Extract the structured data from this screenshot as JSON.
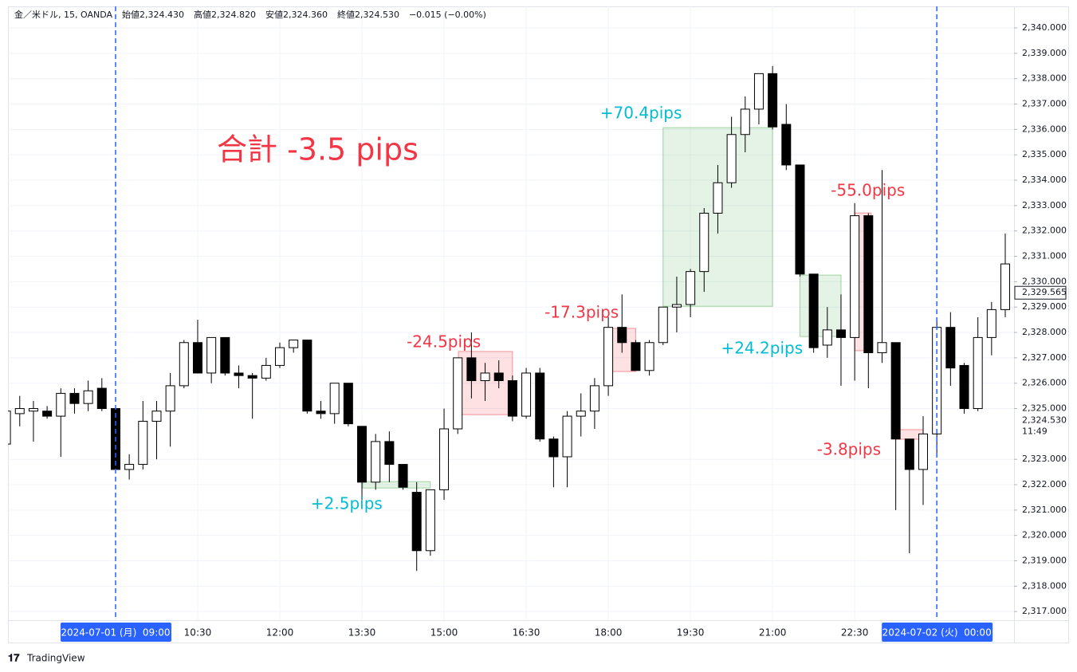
{
  "chart_data": {
    "type": "candlestick",
    "header": {
      "symbol": "金／米ドル, 15, OANDA",
      "fields": [
        {
          "name": "始値",
          "text": "2,324.430"
        },
        {
          "name": "高値",
          "text": "2,324.820"
        },
        {
          "name": "安値",
          "text": "2,324.360"
        },
        {
          "name": "終値",
          "text": "2,324.530"
        }
      ],
      "change": "−0.015 (−0.00%)"
    },
    "title": "合計 -3.5 pips",
    "brand": "TradingView",
    "categories": [
      null,
      null,
      null,
      null,
      null,
      null,
      null,
      null,
      "2024-07-01 (月)  09:00",
      null,
      null,
      null,
      null,
      null,
      "10:30",
      null,
      null,
      null,
      null,
      null,
      "12:00",
      null,
      null,
      null,
      null,
      null,
      "13:30",
      null,
      null,
      null,
      null,
      null,
      "15:00",
      null,
      null,
      null,
      null,
      null,
      "16:30",
      null,
      null,
      null,
      null,
      null,
      "18:00",
      null,
      null,
      null,
      null,
      null,
      "19:30",
      null,
      null,
      null,
      null,
      null,
      "21:00",
      null,
      null,
      null,
      null,
      null,
      "22:30",
      null,
      null,
      null,
      null,
      null,
      "2024-07-02 (火)  00:00",
      null,
      null,
      null,
      null,
      null
    ],
    "open": [
      2323.6,
      2324.8,
      2324.9,
      2324.9,
      2324.7,
      2325.6,
      2325.2,
      2325.8,
      2325.0,
      2322.6,
      2322.8,
      2324.5,
      2324.9,
      2325.9,
      2327.6,
      2326.4,
      2327.8,
      2326.4,
      2326.3,
      2326.2,
      2326.7,
      2327.4,
      2327.7,
      2324.9,
      2324.8,
      2326.0,
      2324.3,
      2322.1,
      2323.7,
      2322.8,
      2321.7,
      2319.4,
      2321.8,
      2324.2,
      2327.0,
      2326.1,
      2326.4,
      2326.1,
      2324.7,
      2326.4,
      2323.8,
      2323.1,
      2324.7,
      2324.9,
      2325.9,
      2328.2,
      2327.6,
      2326.5,
      2327.6,
      2329.0,
      2329.1,
      2330.4,
      2332.7,
      2333.9,
      2335.8,
      2336.8,
      2338.2,
      2336.2,
      2334.6,
      2330.3,
      2327.5,
      2328.1,
      2327.8,
      2332.6,
      2327.2,
      2327.6,
      2323.8,
      2322.6,
      2324.0,
      2328.2,
      2326.7,
      2325.0,
      2327.8,
      2328.9
    ],
    "high": [
      2325.0,
      2325.5,
      2325.3,
      2325.1,
      2325.8,
      2325.8,
      2326.1,
      2326.2,
      2325.0,
      2323.2,
      2325.3,
      2325.3,
      2326.4,
      2327.7,
      2328.5,
      2327.8,
      2327.8,
      2326.7,
      2326.4,
      2327.0,
      2327.6,
      2327.7,
      2327.7,
      2325.3,
      2326.0,
      2326.0,
      2324.3,
      2324.0,
      2324.1,
      2322.8,
      2322.1,
      2321.8,
      2325.0,
      2327.0,
      2328.0,
      2326.8,
      2326.9,
      2326.3,
      2326.6,
      2326.6,
      2323.9,
      2324.9,
      2325.6,
      2326.2,
      2328.6,
      2329.5,
      2327.7,
      2327.7,
      2329.0,
      2330.2,
      2330.5,
      2332.9,
      2334.6,
      2336.5,
      2337.3,
      2338.2,
      2338.5,
      2337.0,
      2334.6,
      2330.3,
      2329.0,
      2329.5,
      2333.1,
      2332.7,
      2334.4,
      2327.6,
      2323.8,
      2324.7,
      2328.5,
      2328.8,
      2326.8,
      2328.6,
      2329.2,
      2331.9
    ],
    "low": [
      2323.1,
      2324.3,
      2323.7,
      2324.6,
      2323.1,
      2324.8,
      2324.9,
      2324.9,
      2322.5,
      2322.2,
      2322.6,
      2323.0,
      2323.5,
      2325.8,
      2326.4,
      2326.0,
      2326.3,
      2325.8,
      2324.6,
      2326.1,
      2326.6,
      2327.2,
      2324.8,
      2324.6,
      2324.4,
      2324.3,
      2321.4,
      2321.8,
      2322.1,
      2321.8,
      2318.6,
      2319.2,
      2321.4,
      2324.0,
      2325.4,
      2325.3,
      2325.8,
      2324.5,
      2324.6,
      2323.7,
      2321.9,
      2321.9,
      2323.9,
      2324.2,
      2325.5,
      2327.2,
      2326.5,
      2326.3,
      2327.5,
      2328.0,
      2328.6,
      2329.6,
      2331.9,
      2333.7,
      2335.1,
      2336.2,
      2336.0,
      2334.4,
      2330.2,
      2327.2,
      2327.0,
      2325.9,
      2326.1,
      2325.8,
      2326.8,
      2321.0,
      2319.3,
      2321.2,
      2323.2,
      2325.9,
      2324.8,
      2324.9,
      2327.1,
      2328.6
    ],
    "close": [
      2324.9,
      2325.0,
      2325.0,
      2324.7,
      2325.6,
      2325.2,
      2325.7,
      2325.0,
      2322.6,
      2322.8,
      2324.5,
      2324.9,
      2325.9,
      2327.6,
      2326.4,
      2327.8,
      2326.4,
      2326.3,
      2326.2,
      2326.7,
      2327.4,
      2327.7,
      2324.9,
      2324.8,
      2326.0,
      2324.4,
      2322.1,
      2323.7,
      2322.8,
      2321.9,
      2319.4,
      2321.8,
      2324.2,
      2327.0,
      2326.1,
      2326.4,
      2326.1,
      2324.7,
      2326.4,
      2323.8,
      2323.1,
      2324.7,
      2324.9,
      2325.9,
      2328.2,
      2327.6,
      2326.5,
      2327.6,
      2329.0,
      2329.1,
      2330.4,
      2332.7,
      2333.9,
      2335.8,
      2336.8,
      2338.2,
      2336.1,
      2334.6,
      2330.3,
      2327.4,
      2328.1,
      2327.8,
      2332.6,
      2327.2,
      2327.6,
      2323.8,
      2322.6,
      2324.0,
      2328.2,
      2326.6,
      2325.0,
      2327.8,
      2328.9,
      2330.7
    ],
    "up_color": "#ffffff",
    "down_color": "#000000",
    "border_color": "#000000",
    "ylim": [
      2316.66,
      2340.85
    ],
    "yticks": [
      {
        "value": 2317,
        "label": "2,317.000"
      },
      {
        "value": 2318,
        "label": "2,318.000"
      },
      {
        "value": 2319,
        "label": "2,319.000"
      },
      {
        "value": 2320,
        "label": "2,320.000"
      },
      {
        "value": 2321,
        "label": "2,321.000"
      },
      {
        "value": 2322,
        "label": "2,322.000"
      },
      {
        "value": 2323,
        "label": "2,323.000"
      },
      {
        "value": 2325,
        "label": "2,325.000"
      },
      {
        "value": 2326,
        "label": "2,326.000"
      },
      {
        "value": 2327,
        "label": "2,327.000"
      },
      {
        "value": 2328,
        "label": "2,328.000"
      },
      {
        "value": 2329,
        "label": "2,329.000"
      },
      {
        "value": 2330,
        "label": "2,330.000"
      },
      {
        "value": 2331,
        "label": "2,331.000"
      },
      {
        "value": 2332,
        "label": "2,332.000"
      },
      {
        "value": 2333,
        "label": "2,333.000"
      },
      {
        "value": 2334,
        "label": "2,334.000"
      },
      {
        "value": 2335,
        "label": "2,335.000"
      },
      {
        "value": 2336,
        "label": "2,336.000"
      },
      {
        "value": 2337,
        "label": "2,337.000"
      },
      {
        "value": 2338,
        "label": "2,338.000"
      },
      {
        "value": 2339,
        "label": "2,339.000"
      },
      {
        "value": 2340,
        "label": "2,340.000"
      }
    ],
    "grid": true,
    "last_price": {
      "value": 2329.565,
      "label": "2,329.565"
    },
    "current_price": {
      "value": 2324.53,
      "label": "2,324.530",
      "countdown": "11:49"
    },
    "session_color": "#2962ff",
    "trades": [
      {
        "label": "+2.5pips",
        "x_start": 26.05,
        "x_end": 31,
        "price_start": 2322.12,
        "price_end": 2321.87,
        "box_color": "#4caf50",
        "label_color": "#00bcd4"
      },
      {
        "label": "-24.5pips",
        "x_start": 33.05,
        "x_end": 37,
        "price_start": 2327.25,
        "price_end": 2324.76,
        "box_color": "#f23645",
        "label_color": "#f23645"
      },
      {
        "label": "-17.3pips",
        "x_start": 44,
        "x_end": 46,
        "price_start": 2328.16,
        "price_end": 2326.46,
        "box_color": "#f23645",
        "label_color": "#f23645"
      },
      {
        "label": "+70.4pips",
        "x_start": 48,
        "x_end": 56,
        "price_start": 2329.03,
        "price_end": 2336.07,
        "box_color": "#4caf50",
        "label_color": "#00bcd4"
      },
      {
        "label": "+24.2pips",
        "x_start": 58,
        "x_end": 61,
        "price_start": 2330.26,
        "price_end": 2327.84,
        "box_color": "#4caf50",
        "label_color": "#00bcd4"
      },
      {
        "label": "-55.0pips",
        "x_start": 62,
        "x_end": 63.2,
        "price_start": 2327.28,
        "price_end": 2332.71,
        "box_color": "#f23645",
        "label_color": "#f23645"
      },
      {
        "label": "-3.8pips",
        "x_start": 65,
        "x_end": 67,
        "price_start": 2324.17,
        "price_end": 2323.79,
        "box_color": "#f23645",
        "label_color": "#f23645"
      }
    ]
  }
}
